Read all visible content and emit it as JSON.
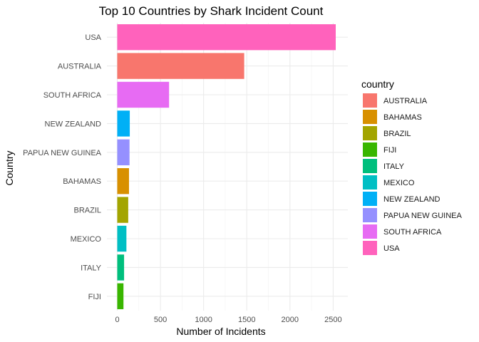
{
  "chart_data": {
    "type": "bar",
    "orientation": "horizontal",
    "title": "Top 10 Countries by Shark Incident Count",
    "xlabel": "Number of Incidents",
    "ylabel": "Country",
    "xlim": [
      0,
      2600
    ],
    "x_ticks": [
      0,
      500,
      1000,
      1500,
      2000,
      2500
    ],
    "grid": true,
    "legend_position": "right",
    "categories": [
      "USA",
      "AUSTRALIA",
      "SOUTH AFRICA",
      "NEW ZEALAND",
      "PAPUA NEW GUINEA",
      "BAHAMAS",
      "BRAZIL",
      "MEXICO",
      "ITALY",
      "FIJI"
    ],
    "values": [
      2530,
      1470,
      600,
      145,
      142,
      136,
      127,
      106,
      79,
      72
    ],
    "legend": {
      "title": "country",
      "entries": [
        {
          "label": "AUSTRALIA",
          "color": "#F8766D"
        },
        {
          "label": "BAHAMAS",
          "color": "#D89000"
        },
        {
          "label": "BRAZIL",
          "color": "#A3A500"
        },
        {
          "label": "FIJI",
          "color": "#39B600"
        },
        {
          "label": "ITALY",
          "color": "#00BF7D"
        },
        {
          "label": "MEXICO",
          "color": "#00BFC4"
        },
        {
          "label": "NEW ZEALAND",
          "color": "#00B0F6"
        },
        {
          "label": "PAPUA NEW GUINEA",
          "color": "#9590FF"
        },
        {
          "label": "SOUTH AFRICA",
          "color": "#E76BF3"
        },
        {
          "label": "USA",
          "color": "#FF62BC"
        }
      ]
    }
  }
}
